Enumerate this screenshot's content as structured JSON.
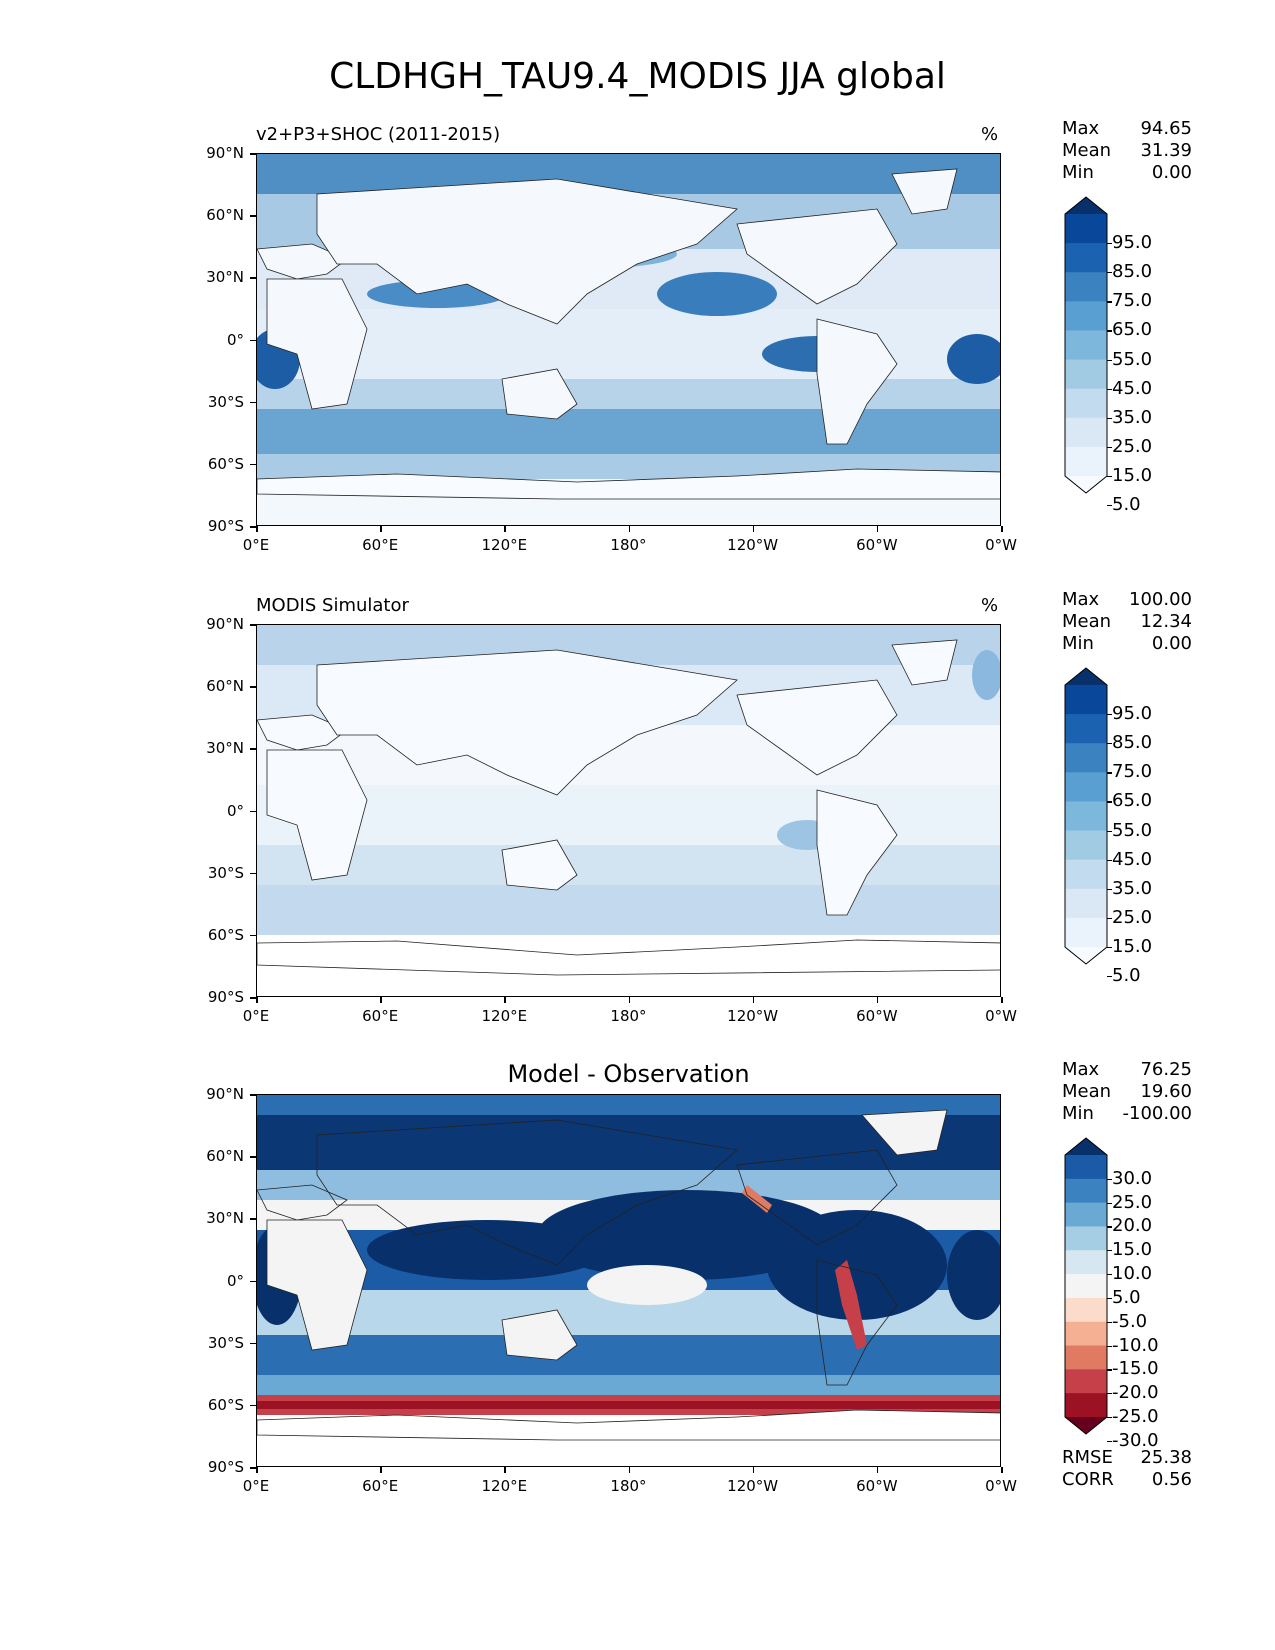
{
  "figure": {
    "title": "CLDHGH_TAU9.4_MODIS JJA global"
  },
  "axes": {
    "lat_labels": [
      "90°N",
      "60°N",
      "30°N",
      "0°",
      "30°S",
      "60°S",
      "90°S"
    ],
    "lon_labels": [
      "0°E",
      "60°E",
      "120°E",
      "180°",
      "120°W",
      "60°W",
      "0°W"
    ]
  },
  "panels": [
    {
      "title": "v2+P3+SHOC (2011-2015)",
      "units": "%",
      "stats": [
        {
          "label": "Max",
          "value": "94.65"
        },
        {
          "label": "Mean",
          "value": "31.39"
        },
        {
          "label": "Min",
          "value": "0.00"
        }
      ],
      "colorbar": {
        "labels": [
          "95.0",
          "85.0",
          "75.0",
          "65.0",
          "55.0",
          "45.0",
          "35.0",
          "25.0",
          "15.0",
          "5.0"
        ],
        "colors": [
          "#08306b",
          "#08479a",
          "#1b63b0",
          "#3a82c0",
          "#5a9fd2",
          "#7db7dc",
          "#a1cbe3",
          "#c3dbef",
          "#dae8f5",
          "#eaf2fb",
          "#f7fbff"
        ]
      }
    },
    {
      "title": "MODIS Simulator",
      "units": "%",
      "stats": [
        {
          "label": "Max",
          "value": "100.00"
        },
        {
          "label": "Mean",
          "value": "12.34"
        },
        {
          "label": "Min",
          "value": "0.00"
        }
      ],
      "colorbar": {
        "labels": [
          "95.0",
          "85.0",
          "75.0",
          "65.0",
          "55.0",
          "45.0",
          "35.0",
          "25.0",
          "15.0",
          "5.0"
        ],
        "colors": [
          "#08306b",
          "#08479a",
          "#1b63b0",
          "#3a82c0",
          "#5a9fd2",
          "#7db7dc",
          "#a1cbe3",
          "#c3dbef",
          "#dae8f5",
          "#eaf2fb",
          "#f7fbff"
        ]
      }
    },
    {
      "title": "Model - Observation",
      "stats": [
        {
          "label": "Max",
          "value": "76.25"
        },
        {
          "label": "Mean",
          "value": "19.60"
        },
        {
          "label": "Min",
          "value": "-100.00"
        }
      ],
      "colorbar": {
        "labels": [
          "30.0",
          "25.0",
          "20.0",
          "15.0",
          "10.0",
          "5.0",
          "-5.0",
          "-10.0",
          "-15.0",
          "-20.0",
          "-25.0",
          "-30.0"
        ],
        "colors": [
          "#08306b",
          "#1b5aa7",
          "#3a82c0",
          "#6aa9d4",
          "#a5cde3",
          "#d6e7f1",
          "#f4f4f4",
          "#fbdccb",
          "#f5b093",
          "#e07a63",
          "#c6404a",
          "#9c1124",
          "#67001f"
        ]
      },
      "error_stats": [
        {
          "label": "RMSE",
          "value": "25.38"
        },
        {
          "label": "CORR",
          "value": "0.56"
        }
      ]
    }
  ]
}
